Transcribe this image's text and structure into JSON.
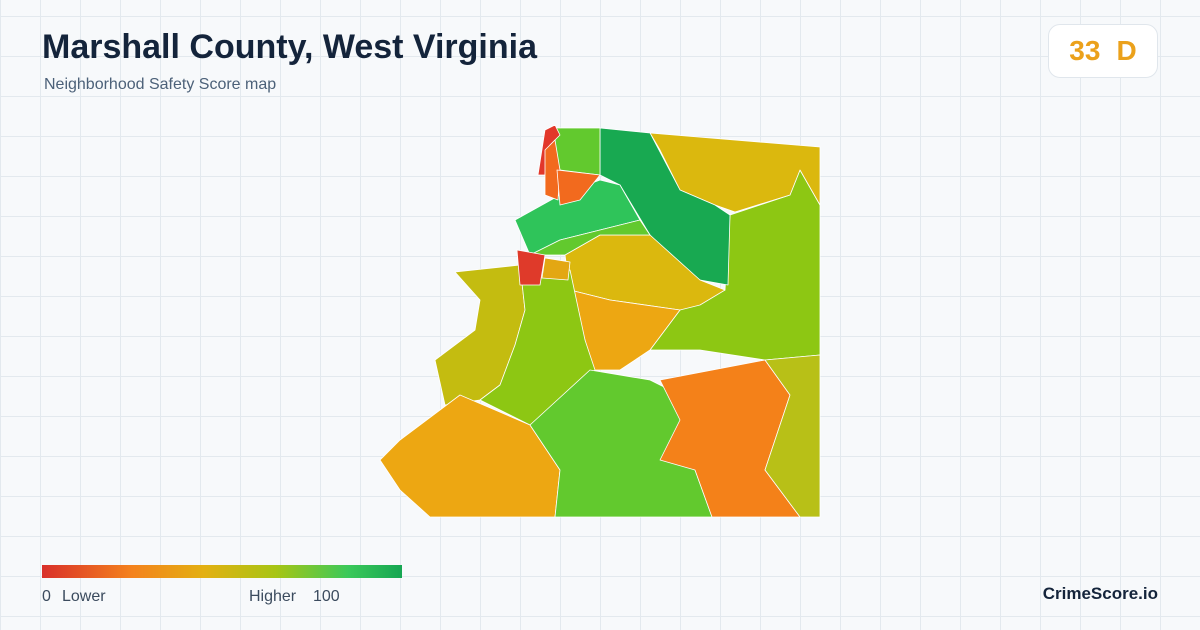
{
  "header": {
    "title": "Marshall County, West Virginia",
    "subtitle": "Neighborhood Safety Score map"
  },
  "score": {
    "value": 33,
    "grade": "D"
  },
  "legend": {
    "min": 0,
    "min_label": "Lower",
    "max_label": "Higher",
    "max": 100
  },
  "brand": "CrimeScore.io"
}
